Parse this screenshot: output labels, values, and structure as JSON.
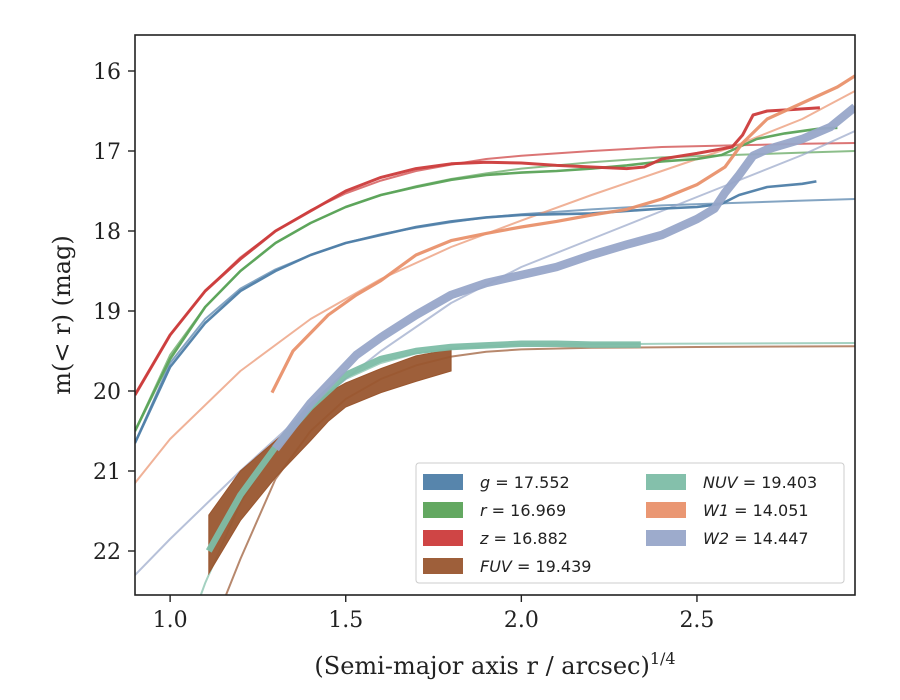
{
  "chart_data": {
    "type": "line",
    "title": "",
    "xlabel": "(Semi-major axis r / arcsec)",
    "xlabel_sup": "1/4",
    "ylabel": "m(< r) (mag)",
    "xlim": [
      0.9,
      2.95
    ],
    "ylim": [
      22.55,
      15.55
    ],
    "y_inverted": true,
    "grid": false,
    "legend_position": "lower-right",
    "x_ticks": [
      "1.0",
      "1.5",
      "2.0",
      "2.5"
    ],
    "y_ticks": [
      "16",
      "17",
      "18",
      "19",
      "20",
      "21",
      "22"
    ],
    "series": [
      {
        "name": "g = 17.552",
        "color": "#4e7ea8",
        "data": [
          [
            0.9,
            20.65
          ],
          [
            1.0,
            19.7
          ],
          [
            1.1,
            19.15
          ],
          [
            1.2,
            18.75
          ],
          [
            1.3,
            18.5
          ],
          [
            1.4,
            18.3
          ],
          [
            1.5,
            18.15
          ],
          [
            1.6,
            18.05
          ],
          [
            1.7,
            17.95
          ],
          [
            1.8,
            17.88
          ],
          [
            1.9,
            17.83
          ],
          [
            2.0,
            17.8
          ],
          [
            2.1,
            17.79
          ],
          [
            2.2,
            17.78
          ],
          [
            2.3,
            17.75
          ],
          [
            2.4,
            17.72
          ],
          [
            2.5,
            17.7
          ],
          [
            2.57,
            17.66
          ],
          [
            2.62,
            17.55
          ],
          [
            2.7,
            17.45
          ],
          [
            2.8,
            17.41
          ],
          [
            2.84,
            17.38
          ]
        ],
        "model": [
          [
            0.9,
            20.65
          ],
          [
            1.0,
            19.65
          ],
          [
            1.1,
            19.1
          ],
          [
            1.2,
            18.72
          ],
          [
            1.3,
            18.48
          ],
          [
            1.4,
            18.3
          ],
          [
            1.5,
            18.15
          ],
          [
            1.6,
            18.04
          ],
          [
            1.7,
            17.96
          ],
          [
            1.8,
            17.89
          ],
          [
            1.9,
            17.83
          ],
          [
            2.0,
            17.79
          ],
          [
            2.2,
            17.73
          ],
          [
            2.4,
            17.68
          ],
          [
            2.6,
            17.65
          ],
          [
            2.8,
            17.62
          ],
          [
            2.95,
            17.6
          ]
        ]
      },
      {
        "name": "r = 16.969",
        "color": "#5ba358",
        "data": [
          [
            0.9,
            20.5
          ],
          [
            1.0,
            19.6
          ],
          [
            1.1,
            18.95
          ],
          [
            1.2,
            18.5
          ],
          [
            1.3,
            18.15
          ],
          [
            1.4,
            17.9
          ],
          [
            1.5,
            17.7
          ],
          [
            1.6,
            17.55
          ],
          [
            1.7,
            17.45
          ],
          [
            1.8,
            17.36
          ],
          [
            1.9,
            17.3
          ],
          [
            2.0,
            17.27
          ],
          [
            2.1,
            17.25
          ],
          [
            2.2,
            17.22
          ],
          [
            2.3,
            17.18
          ],
          [
            2.4,
            17.13
          ],
          [
            2.5,
            17.1
          ],
          [
            2.57,
            17.05
          ],
          [
            2.62,
            16.95
          ],
          [
            2.67,
            16.85
          ],
          [
            2.75,
            16.78
          ],
          [
            2.85,
            16.72
          ],
          [
            2.9,
            16.71
          ]
        ],
        "model": [
          [
            0.9,
            20.5
          ],
          [
            1.0,
            19.55
          ],
          [
            1.1,
            18.95
          ],
          [
            1.2,
            18.5
          ],
          [
            1.3,
            18.15
          ],
          [
            1.4,
            17.9
          ],
          [
            1.5,
            17.7
          ],
          [
            1.6,
            17.55
          ],
          [
            1.7,
            17.44
          ],
          [
            1.8,
            17.35
          ],
          [
            1.9,
            17.28
          ],
          [
            2.0,
            17.22
          ],
          [
            2.2,
            17.14
          ],
          [
            2.4,
            17.08
          ],
          [
            2.6,
            17.05
          ],
          [
            2.8,
            17.02
          ],
          [
            2.95,
            17.0
          ]
        ]
      },
      {
        "name": "z = 16.882",
        "color": "#cc3b3b",
        "data": [
          [
            0.9,
            20.05
          ],
          [
            1.0,
            19.3
          ],
          [
            1.1,
            18.75
          ],
          [
            1.2,
            18.35
          ],
          [
            1.3,
            18.0
          ],
          [
            1.4,
            17.75
          ],
          [
            1.5,
            17.5
          ],
          [
            1.6,
            17.33
          ],
          [
            1.7,
            17.22
          ],
          [
            1.8,
            17.16
          ],
          [
            1.9,
            17.14
          ],
          [
            2.0,
            17.15
          ],
          [
            2.1,
            17.18
          ],
          [
            2.2,
            17.2
          ],
          [
            2.3,
            17.22
          ],
          [
            2.35,
            17.2
          ],
          [
            2.4,
            17.1
          ],
          [
            2.5,
            17.03
          ],
          [
            2.6,
            16.95
          ],
          [
            2.63,
            16.8
          ],
          [
            2.66,
            16.55
          ],
          [
            2.7,
            16.5
          ],
          [
            2.78,
            16.48
          ],
          [
            2.85,
            16.46
          ]
        ],
        "model": [
          [
            0.9,
            20.05
          ],
          [
            1.0,
            19.3
          ],
          [
            1.1,
            18.75
          ],
          [
            1.2,
            18.33
          ],
          [
            1.3,
            18.0
          ],
          [
            1.4,
            17.74
          ],
          [
            1.5,
            17.53
          ],
          [
            1.6,
            17.37
          ],
          [
            1.7,
            17.25
          ],
          [
            1.8,
            17.17
          ],
          [
            1.9,
            17.1
          ],
          [
            2.0,
            17.06
          ],
          [
            2.2,
            17.0
          ],
          [
            2.4,
            16.95
          ],
          [
            2.6,
            16.93
          ],
          [
            2.8,
            16.91
          ],
          [
            2.95,
            16.9
          ]
        ]
      },
      {
        "name": "FUV = 19.439",
        "color": "#99562f",
        "band": [
          [
            1.11,
            21.55,
            22.28
          ],
          [
            1.2,
            21.0,
            21.62
          ],
          [
            1.3,
            20.62,
            21.08
          ],
          [
            1.4,
            20.25,
            20.62
          ],
          [
            1.45,
            20.02,
            20.38
          ],
          [
            1.5,
            19.9,
            20.2
          ],
          [
            1.6,
            19.72,
            20.02
          ],
          [
            1.7,
            19.56,
            19.88
          ],
          [
            1.8,
            19.48,
            19.75
          ]
        ],
        "model": [
          [
            1.1,
            23.2
          ],
          [
            1.2,
            22.1
          ],
          [
            1.3,
            21.1
          ],
          [
            1.4,
            20.5
          ],
          [
            1.5,
            20.1
          ],
          [
            1.6,
            19.85
          ],
          [
            1.7,
            19.68
          ],
          [
            1.8,
            19.57
          ],
          [
            1.9,
            19.51
          ],
          [
            2.0,
            19.48
          ],
          [
            2.2,
            19.46
          ],
          [
            2.5,
            19.45
          ],
          [
            2.95,
            19.44
          ]
        ]
      },
      {
        "name": "NUV = 19.403",
        "color": "#7dbda6",
        "data": [
          [
            1.11,
            22.0
          ],
          [
            1.2,
            21.3
          ],
          [
            1.3,
            20.7
          ],
          [
            1.4,
            20.2
          ],
          [
            1.5,
            19.8
          ],
          [
            1.6,
            19.6
          ],
          [
            1.7,
            19.5
          ],
          [
            1.8,
            19.45
          ],
          [
            1.9,
            19.43
          ],
          [
            2.0,
            19.41
          ],
          [
            2.1,
            19.41
          ],
          [
            2.2,
            19.42
          ],
          [
            2.34,
            19.42
          ]
        ],
        "model": [
          [
            1.05,
            23.0
          ],
          [
            1.1,
            22.4
          ],
          [
            1.2,
            21.4
          ],
          [
            1.3,
            20.7
          ],
          [
            1.4,
            20.2
          ],
          [
            1.5,
            19.85
          ],
          [
            1.6,
            19.65
          ],
          [
            1.7,
            19.53
          ],
          [
            1.8,
            19.47
          ],
          [
            1.9,
            19.44
          ],
          [
            2.0,
            19.42
          ],
          [
            2.4,
            19.41
          ],
          [
            2.95,
            19.4
          ]
        ]
      },
      {
        "name": "W1 = 14.051",
        "color": "#e9916c",
        "data": [
          [
            1.29,
            20.02
          ],
          [
            1.35,
            19.5
          ],
          [
            1.45,
            19.05
          ],
          [
            1.53,
            18.8
          ],
          [
            1.6,
            18.62
          ],
          [
            1.7,
            18.3
          ],
          [
            1.8,
            18.12
          ],
          [
            1.9,
            18.03
          ],
          [
            2.0,
            17.95
          ],
          [
            2.1,
            17.88
          ],
          [
            2.2,
            17.8
          ],
          [
            2.3,
            17.73
          ],
          [
            2.4,
            17.6
          ],
          [
            2.5,
            17.42
          ],
          [
            2.58,
            17.2
          ],
          [
            2.63,
            16.9
          ],
          [
            2.7,
            16.6
          ],
          [
            2.8,
            16.4
          ],
          [
            2.9,
            16.2
          ],
          [
            2.95,
            16.06
          ]
        ],
        "model": [
          [
            0.9,
            21.15
          ],
          [
            1.0,
            20.6
          ],
          [
            1.2,
            19.75
          ],
          [
            1.4,
            19.1
          ],
          [
            1.6,
            18.6
          ],
          [
            1.8,
            18.2
          ],
          [
            2.0,
            17.87
          ],
          [
            2.2,
            17.55
          ],
          [
            2.4,
            17.25
          ],
          [
            2.6,
            16.95
          ],
          [
            2.8,
            16.6
          ],
          [
            2.95,
            16.25
          ]
        ]
      },
      {
        "name": "W2 = 14.447",
        "color": "#98a6c9",
        "data": [
          [
            1.3,
            20.72
          ],
          [
            1.4,
            20.15
          ],
          [
            1.53,
            19.55
          ],
          [
            1.6,
            19.33
          ],
          [
            1.7,
            19.05
          ],
          [
            1.8,
            18.8
          ],
          [
            1.9,
            18.65
          ],
          [
            2.0,
            18.55
          ],
          [
            2.1,
            18.45
          ],
          [
            2.2,
            18.3
          ],
          [
            2.3,
            18.17
          ],
          [
            2.4,
            18.05
          ],
          [
            2.5,
            17.85
          ],
          [
            2.55,
            17.72
          ],
          [
            2.58,
            17.52
          ],
          [
            2.62,
            17.3
          ],
          [
            2.66,
            17.06
          ],
          [
            2.7,
            16.98
          ],
          [
            2.8,
            16.85
          ],
          [
            2.88,
            16.7
          ],
          [
            2.95,
            16.45
          ]
        ],
        "model": [
          [
            0.9,
            22.3
          ],
          [
            1.0,
            21.85
          ],
          [
            1.2,
            21.0
          ],
          [
            1.4,
            20.2
          ],
          [
            1.6,
            19.5
          ],
          [
            1.8,
            18.9
          ],
          [
            2.0,
            18.45
          ],
          [
            2.2,
            18.1
          ],
          [
            2.4,
            17.75
          ],
          [
            2.6,
            17.4
          ],
          [
            2.8,
            17.05
          ],
          [
            2.95,
            16.75
          ]
        ]
      }
    ]
  }
}
